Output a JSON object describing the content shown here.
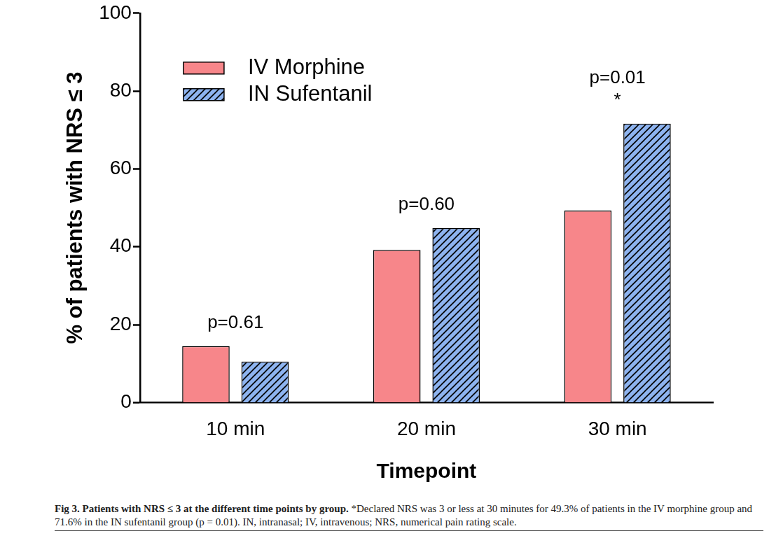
{
  "chart_data": {
    "type": "bar",
    "categories": [
      "10 min",
      "20 min",
      "30 min"
    ],
    "series": [
      {
        "name": "IV Morphine",
        "color": "#f7868a",
        "values": [
          14.5,
          39.2,
          49.3
        ]
      },
      {
        "name": "IN Sufentanil",
        "color": "#8db3ef",
        "values": [
          10.5,
          44.8,
          71.6
        ]
      }
    ],
    "x_label": "Timepoint",
    "y_label": "% of patients with NRS ≤ 3",
    "ylim": [
      0,
      100
    ],
    "yticks": [
      0,
      20,
      40,
      60,
      80,
      100
    ],
    "grid": false,
    "legend": "upper left",
    "annotations": [
      {
        "category": "10 min",
        "text": "p=0.61"
      },
      {
        "category": "20 min",
        "text": "p=0.60"
      },
      {
        "category": "30 min",
        "text": "p=0.01"
      },
      {
        "category": "30 min",
        "text": "*"
      }
    ]
  },
  "caption": {
    "title": "Fig 3. Patients with NRS ≤ 3 at the different time points by group.",
    "text": "*Declared NRS was 3 or less at 30 minutes for 49.3% of patients in the IV morphine group and 71.6% in the IN sufentanil group (p = 0.01). IN, intranasal; IV, intravenous; NRS, numerical pain rating scale."
  }
}
